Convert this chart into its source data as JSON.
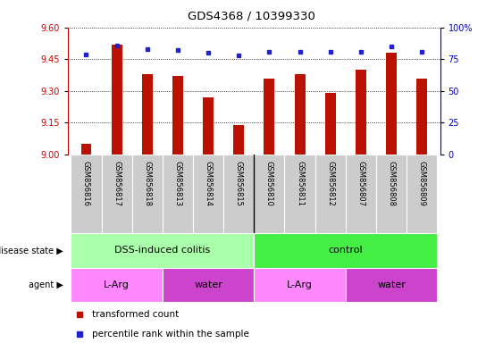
{
  "title": "GDS4368 / 10399330",
  "samples": [
    "GSM856816",
    "GSM856817",
    "GSM856818",
    "GSM856813",
    "GSM856814",
    "GSM856815",
    "GSM856810",
    "GSM856811",
    "GSM856812",
    "GSM856807",
    "GSM856808",
    "GSM856809"
  ],
  "red_values": [
    9.05,
    9.52,
    9.38,
    9.37,
    9.27,
    9.14,
    9.36,
    9.38,
    9.29,
    9.4,
    9.48,
    9.36
  ],
  "blue_values": [
    79,
    86,
    83,
    82,
    80,
    78,
    81,
    81,
    81,
    81,
    85,
    81
  ],
  "ylim_left": [
    9.0,
    9.6
  ],
  "ylim_right": [
    0,
    100
  ],
  "yticks_left": [
    9.0,
    9.15,
    9.3,
    9.45,
    9.6
  ],
  "yticks_right": [
    0,
    25,
    50,
    75,
    100
  ],
  "ytick_labels_right": [
    "0",
    "25",
    "50",
    "75",
    "100%"
  ],
  "disease_state_groups": [
    {
      "label": "DSS-induced colitis",
      "start": 0,
      "end": 6,
      "color": "#AAFFAA"
    },
    {
      "label": "control",
      "start": 6,
      "end": 12,
      "color": "#44EE44"
    }
  ],
  "agent_groups": [
    {
      "label": "L-Arg",
      "start": 0,
      "end": 3,
      "color": "#FF88FF"
    },
    {
      "label": "water",
      "start": 3,
      "end": 6,
      "color": "#CC44CC"
    },
    {
      "label": "L-Arg",
      "start": 6,
      "end": 9,
      "color": "#FF88FF"
    },
    {
      "label": "water",
      "start": 9,
      "end": 12,
      "color": "#CC44CC"
    }
  ],
  "bar_color": "#BB1100",
  "dot_color": "#2222CC",
  "legend_labels": [
    "transformed count",
    "percentile rank within the sample"
  ],
  "axis_left_color": "#CC0000",
  "axis_right_color": "#0000BB",
  "sample_bg_color": "#CCCCCC",
  "bar_width": 0.35
}
